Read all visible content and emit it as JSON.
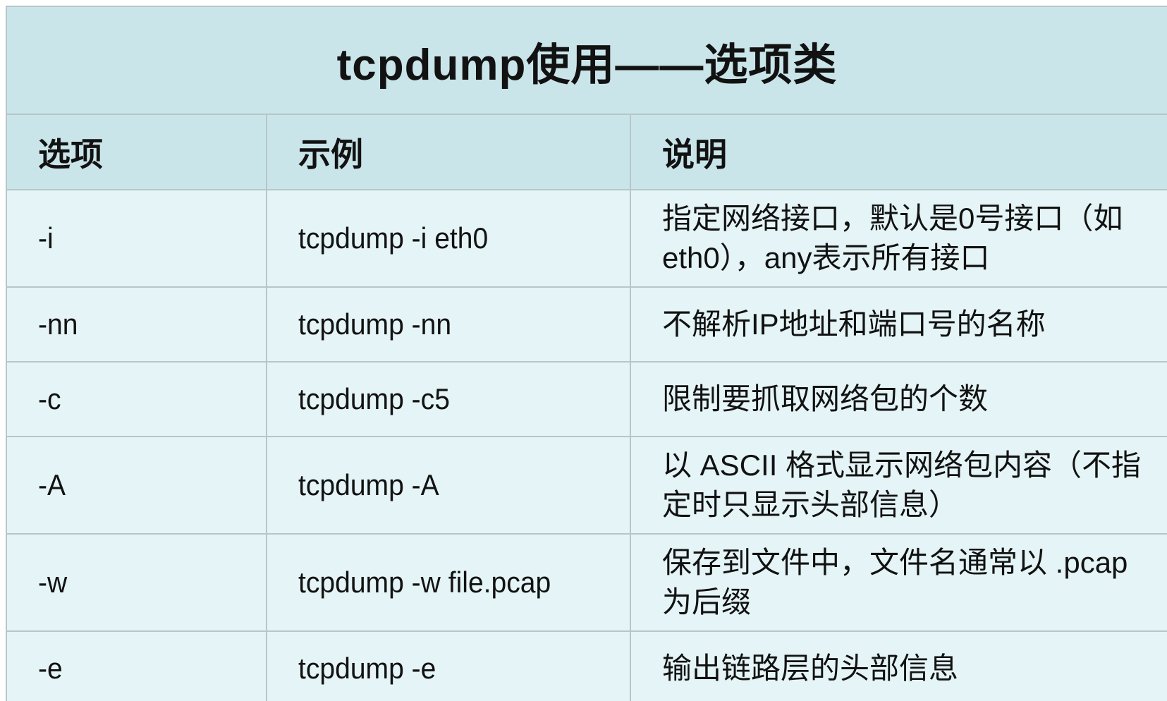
{
  "table": {
    "title": "tcpdump使用——选项类",
    "columns": {
      "option": "选项",
      "example": "示例",
      "description": "说明"
    },
    "rows": [
      {
        "option": "-i",
        "example": "tcpdump -i eth0",
        "description": "指定网络接口，默认是0号接口（如eth0），any表示所有接口"
      },
      {
        "option": "-nn",
        "example": "tcpdump -nn",
        "description": "不解析IP地址和端口号的名称"
      },
      {
        "option": "-c",
        "example": "tcpdump -c5",
        "description": "限制要抓取网络包的个数"
      },
      {
        "option": "-A",
        "example": "tcpdump -A",
        "description": "以 ASCII 格式显示网络包内容（不指定时只显示头部信息）"
      },
      {
        "option": "-w",
        "example": "tcpdump -w file.pcap",
        "description": "保存到文件中，文件名通常以 .pcap 为后缀"
      },
      {
        "option": "-e",
        "example": "tcpdump -e",
        "description": "输出链路层的头部信息"
      }
    ]
  },
  "colors": {
    "header_bg": "#c9e5e9",
    "row_bg": "#e5f4f6",
    "border": "#b7c6c8",
    "text": "#121212",
    "page_bg": "#ffffff"
  }
}
